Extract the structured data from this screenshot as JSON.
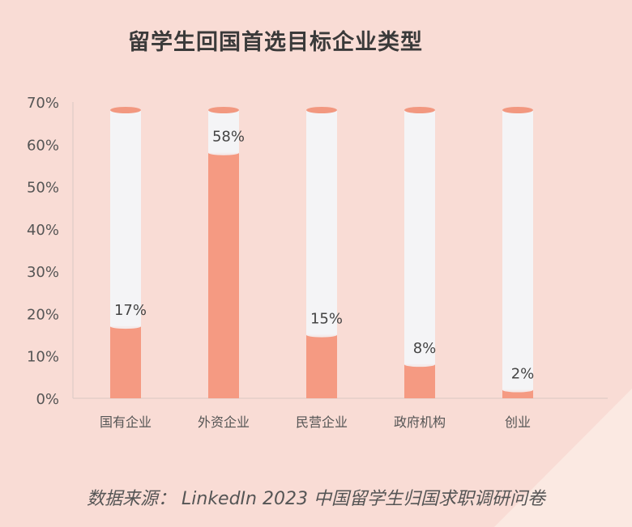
{
  "chart_data": {
    "type": "bar",
    "title": "留学生回国首选目标企业类型",
    "categories": [
      "国有企业",
      "外资企业",
      "民营企业",
      "政府机构",
      "创业"
    ],
    "values": [
      17,
      58,
      15,
      8,
      2
    ],
    "value_labels": [
      "17%",
      "58%",
      "15%",
      "8%",
      "2%"
    ],
    "ylim": [
      0,
      70
    ],
    "yticks": [
      "0%",
      "10%",
      "20%",
      "30%",
      "40%",
      "50%",
      "60%",
      "70%"
    ],
    "xlabel": "",
    "ylabel": "",
    "grid": false,
    "bar_color": "#f59a82",
    "track_color": "#f4f4f6"
  },
  "source": "数据来源：  LinkedIn 2023 中国留学生归国求职调研问卷"
}
